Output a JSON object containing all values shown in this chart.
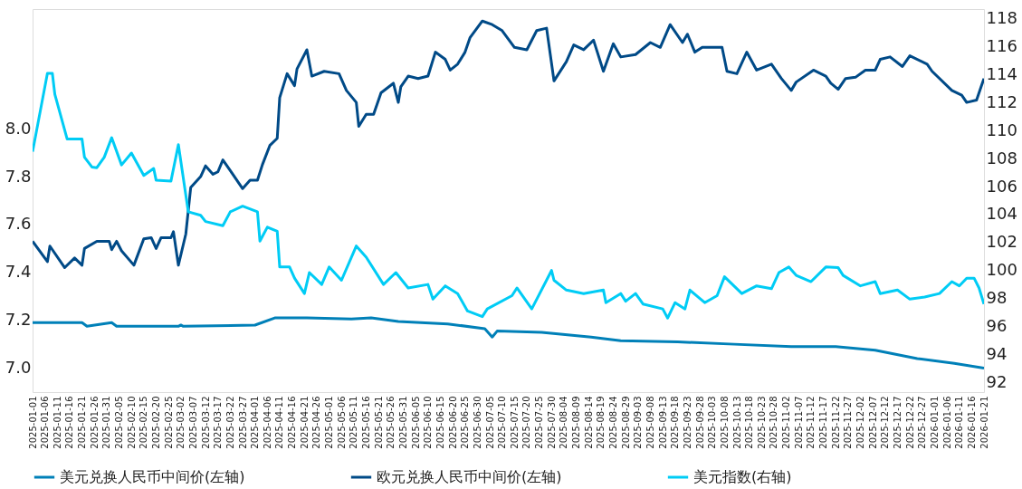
{
  "chart_data": {
    "type": "line",
    "legend": "bottom",
    "grid": false,
    "marker": "none",
    "line_style": "solid",
    "xlim": [
      "2025-01-01",
      "2026-01-21"
    ],
    "xticks": [
      "2025-01-01",
      "2025-01-06",
      "2025-01-11",
      "2025-01-16",
      "2025-01-21",
      "2025-01-26",
      "2025-01-31",
      "2025-02-05",
      "2025-02-10",
      "2025-02-15",
      "2025-02-20",
      "2025-02-25",
      "2025-03-02",
      "2025-03-07",
      "2025-03-12",
      "2025-03-17",
      "2025-03-22",
      "2025-03-27",
      "2025-04-01",
      "2025-04-06",
      "2025-04-11",
      "2025-04-16",
      "2025-04-21",
      "2025-04-26",
      "2025-05-01",
      "2025-05-06",
      "2025-05-11",
      "2025-05-16",
      "2025-05-21",
      "2025-05-26",
      "2025-05-31",
      "2025-06-05",
      "2025-06-10",
      "2025-06-15",
      "2025-06-20",
      "2025-06-25",
      "2025-06-30",
      "2025-07-05",
      "2025-07-10",
      "2025-07-15",
      "2025-07-20",
      "2025-07-25",
      "2025-07-30",
      "2025-08-04",
      "2025-08-09",
      "2025-08-14",
      "2025-08-19",
      "2025-08-24",
      "2025-08-29",
      "2025-09-03",
      "2025-09-08",
      "2025-09-13",
      "2025-09-18",
      "2025-09-23",
      "2025-09-28",
      "2025-10-03",
      "2025-10-08",
      "2025-10-13",
      "2025-10-18",
      "2025-10-23",
      "2025-10-28",
      "2025-11-02",
      "2025-11-07",
      "2025-11-12",
      "2025-11-17",
      "2025-11-22",
      "2025-11-27",
      "2025-12-02",
      "2025-12-07",
      "2025-12-12",
      "2025-12-17",
      "2025-12-22",
      "2025-12-27",
      "2026-01-01",
      "2026-01-06",
      "2026-01-11",
      "2026-01-16",
      "2026-01-21"
    ],
    "ylim": [
      6.9,
      8.5
    ],
    "yticks": [
      {
        "value": 7,
        "label": "7.0"
      },
      7.2,
      7.4,
      7.6,
      7.8,
      {
        "value": 8,
        "label": "8.0"
      }
    ],
    "y2lim": [
      91.3,
      118.7
    ],
    "y2ticks": [
      92,
      94,
      96,
      98,
      100,
      102,
      104,
      106,
      108,
      110,
      112,
      114,
      116,
      118
    ],
    "series": [
      {
        "name": "美元兑换人民币中间价(左轴)",
        "color": "#0080b8",
        "x": [
          "2025-01-01",
          "2025-01-21",
          "2025-01-23",
          "2025-02-02",
          "2025-02-04",
          "2025-03-01",
          "2025-03-02",
          "2025-03-03",
          "2025-04-01",
          "2025-04-09",
          "2025-04-22",
          "2025-05-10",
          "2025-05-18",
          "2025-05-29",
          "2025-06-18",
          "2025-07-03",
          "2025-07-06",
          "2025-07-08",
          "2025-07-26",
          "2025-08-15",
          "2025-08-27",
          "2025-09-19",
          "2025-10-12",
          "2025-11-04",
          "2025-11-22",
          "2025-12-08",
          "2025-12-25",
          "2026-01-09",
          "2026-01-21"
        ],
        "values": [
          7.19,
          7.19,
          7.175,
          7.19,
          7.175,
          7.175,
          7.18,
          7.175,
          7.18,
          7.21,
          7.21,
          7.205,
          7.21,
          7.195,
          7.185,
          7.165,
          7.13,
          7.155,
          7.15,
          7.13,
          7.115,
          7.11,
          7.1,
          7.09,
          7.09,
          7.075,
          7.04,
          7.02,
          7.0
        ]
      },
      {
        "name": "欧元兑换人民币中间价(左轴)",
        "color": "#004a87",
        "x": [
          "2025-01-01",
          "2025-01-07",
          "2025-01-08",
          "2025-01-14",
          "2025-01-18",
          "2025-01-21",
          "2025-01-22",
          "2025-01-27",
          "2025-02-01",
          "2025-02-02",
          "2025-02-04",
          "2025-02-06",
          "2025-02-11",
          "2025-02-15",
          "2025-02-18",
          "2025-02-20",
          "2025-02-22",
          "2025-02-26",
          "2025-02-27",
          "2025-03-01",
          "2025-03-04",
          "2025-03-06",
          "2025-03-10",
          "2025-03-12",
          "2025-03-15",
          "2025-03-17",
          "2025-03-19",
          "2025-03-22",
          "2025-03-27",
          "2025-03-30",
          "2025-04-02",
          "2025-04-04",
          "2025-04-07",
          "2025-04-10",
          "2025-04-11",
          "2025-04-14",
          "2025-04-17",
          "2025-04-18",
          "2025-04-22",
          "2025-04-24",
          "2025-04-29",
          "2025-05-05",
          "2025-05-08",
          "2025-05-12",
          "2025-05-13",
          "2025-05-16",
          "2025-05-19",
          "2025-05-22",
          "2025-05-27",
          "2025-05-29",
          "2025-05-30",
          "2025-06-02",
          "2025-06-06",
          "2025-06-10",
          "2025-06-13",
          "2025-06-17",
          "2025-06-19",
          "2025-06-22",
          "2025-06-25",
          "2025-06-27",
          "2025-07-02",
          "2025-07-06",
          "2025-07-10",
          "2025-07-15",
          "2025-07-20",
          "2025-07-24",
          "2025-07-28",
          "2025-07-31",
          "2025-08-05",
          "2025-08-08",
          "2025-08-12",
          "2025-08-16",
          "2025-08-20",
          "2025-08-24",
          "2025-08-27",
          "2025-09-02",
          "2025-09-08",
          "2025-09-12",
          "2025-09-16",
          "2025-09-21",
          "2025-09-23",
          "2025-09-26",
          "2025-09-29",
          "2025-10-07",
          "2025-10-09",
          "2025-10-13",
          "2025-10-17",
          "2025-10-21",
          "2025-10-27",
          "2025-10-31",
          "2025-11-04",
          "2025-11-06",
          "2025-11-13",
          "2025-11-18",
          "2025-11-20",
          "2025-11-23",
          "2025-11-26",
          "2025-11-30",
          "2025-12-04",
          "2025-12-08",
          "2025-12-10",
          "2025-12-14",
          "2025-12-19",
          "2025-12-22",
          "2025-12-29",
          "2025-12-31",
          "2026-01-08",
          "2026-01-12",
          "2026-01-14",
          "2026-01-18",
          "2026-01-20",
          "2026-01-21"
        ],
        "values": [
          7.53,
          7.445,
          7.51,
          7.42,
          7.46,
          7.43,
          7.5,
          7.53,
          7.53,
          7.495,
          7.53,
          7.49,
          7.43,
          7.54,
          7.545,
          7.5,
          7.545,
          7.545,
          7.57,
          7.43,
          7.56,
          7.755,
          7.8,
          7.845,
          7.81,
          7.82,
          7.87,
          7.825,
          7.75,
          7.785,
          7.785,
          7.85,
          7.93,
          7.96,
          8.13,
          8.23,
          8.18,
          8.25,
          8.33,
          8.22,
          8.24,
          8.23,
          8.16,
          8.11,
          8.01,
          8.06,
          8.06,
          8.15,
          8.19,
          8.11,
          8.175,
          8.22,
          8.21,
          8.22,
          8.32,
          8.29,
          8.245,
          8.27,
          8.32,
          8.38,
          8.45,
          8.435,
          8.41,
          8.34,
          8.33,
          8.41,
          8.42,
          8.2,
          8.28,
          8.35,
          8.33,
          8.37,
          8.24,
          8.355,
          8.3,
          8.31,
          8.36,
          8.34,
          8.435,
          8.36,
          8.395,
          8.32,
          8.34,
          8.34,
          8.24,
          8.23,
          8.32,
          8.245,
          8.27,
          8.21,
          8.16,
          8.195,
          8.245,
          8.22,
          8.19,
          8.165,
          8.21,
          8.215,
          8.245,
          8.245,
          8.29,
          8.3,
          8.26,
          8.305,
          8.27,
          8.24,
          8.16,
          8.14,
          8.11,
          8.12,
          8.18,
          8.21
        ]
      },
      {
        "name": "美元指数(右轴)",
        "color": "#00ccf5",
        "axis": "y2",
        "x": [
          "2025-01-01",
          "2025-01-07",
          "2025-01-09",
          "2025-01-10",
          "2025-01-15",
          "2025-01-17",
          "2025-01-21",
          "2025-01-22",
          "2025-01-25",
          "2025-01-27",
          "2025-01-30",
          "2025-02-02",
          "2025-02-06",
          "2025-02-10",
          "2025-02-15",
          "2025-02-19",
          "2025-02-20",
          "2025-02-26",
          "2025-03-01",
          "2025-03-05",
          "2025-03-10",
          "2025-03-12",
          "2025-03-19",
          "2025-03-22",
          "2025-03-27",
          "2025-04-02",
          "2025-04-03",
          "2025-04-06",
          "2025-04-10",
          "2025-04-11",
          "2025-04-15",
          "2025-04-17",
          "2025-04-21",
          "2025-04-23",
          "2025-04-28",
          "2025-05-01",
          "2025-05-06",
          "2025-05-12",
          "2025-05-16",
          "2025-05-23",
          "2025-05-28",
          "2025-06-02",
          "2025-06-10",
          "2025-06-12",
          "2025-06-17",
          "2025-06-22",
          "2025-06-26",
          "2025-07-02",
          "2025-07-04",
          "2025-07-14",
          "2025-07-16",
          "2025-07-22",
          "2025-07-30",
          "2025-07-31",
          "2025-08-05",
          "2025-08-12",
          "2025-08-20",
          "2025-08-21",
          "2025-08-27",
          "2025-08-29",
          "2025-09-02",
          "2025-09-05",
          "2025-09-13",
          "2025-09-15",
          "2025-09-18",
          "2025-09-22",
          "2025-09-24",
          "2025-09-30",
          "2025-10-05",
          "2025-10-08",
          "2025-10-15",
          "2025-10-21",
          "2025-10-27",
          "2025-10-30",
          "2025-11-03",
          "2025-11-06",
          "2025-11-12",
          "2025-11-18",
          "2025-11-23",
          "2025-11-25",
          "2025-12-02",
          "2025-12-08",
          "2025-12-10",
          "2025-12-17",
          "2025-12-22",
          "2025-12-28",
          "2026-01-03",
          "2026-01-08",
          "2026-01-11",
          "2026-01-14",
          "2026-01-17",
          "2026-01-19",
          "2026-01-21"
        ],
        "values": [
          108.5,
          114.1,
          114.1,
          112.6,
          109.4,
          109.4,
          109.4,
          108.1,
          107.4,
          107.35,
          108.1,
          109.5,
          107.55,
          108.4,
          106.8,
          107.3,
          106.45,
          106.4,
          109.0,
          104.2,
          103.95,
          103.5,
          103.2,
          104.2,
          104.6,
          104.2,
          102.1,
          103.1,
          102.8,
          100.25,
          100.25,
          99.45,
          98.35,
          99.85,
          99.0,
          100.25,
          99.3,
          101.75,
          100.95,
          99.0,
          99.85,
          98.75,
          99.0,
          97.95,
          98.9,
          98.35,
          97.1,
          96.7,
          97.25,
          98.2,
          98.75,
          97.25,
          100.0,
          99.3,
          98.6,
          98.35,
          98.6,
          97.7,
          98.35,
          97.8,
          98.35,
          97.6,
          97.25,
          96.6,
          97.7,
          97.25,
          98.6,
          97.7,
          98.2,
          99.55,
          98.35,
          98.9,
          98.7,
          99.85,
          100.25,
          99.65,
          99.2,
          100.25,
          100.2,
          99.65,
          98.9,
          99.2,
          98.35,
          98.6,
          97.95,
          98.1,
          98.35,
          99.2,
          98.9,
          99.45,
          99.45,
          98.75,
          97.6
        ]
      }
    ]
  }
}
